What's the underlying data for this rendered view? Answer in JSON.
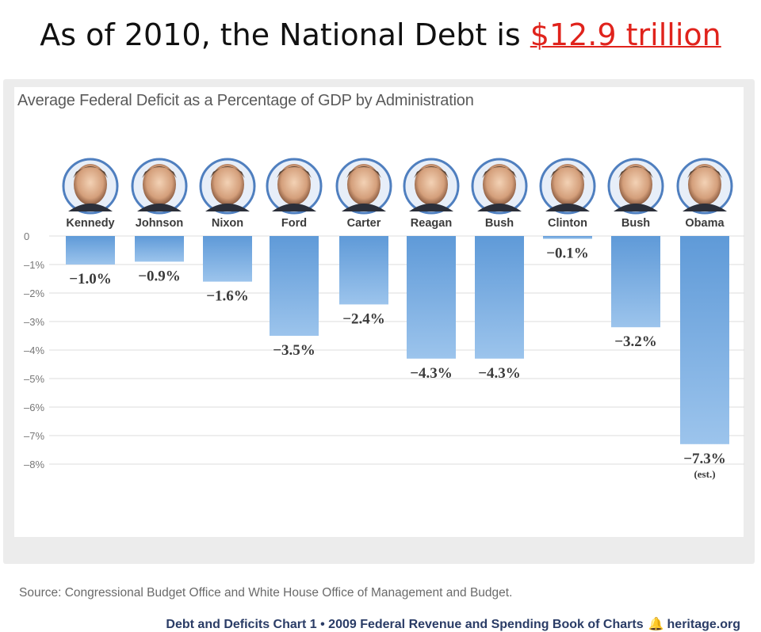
{
  "slide": {
    "title_prefix": "As of 2010, the National Debt is ",
    "title_highlight": "$12.9 trillion"
  },
  "colors": {
    "highlight": "#e0231c",
    "bar": "#5f9ad8",
    "bar_light": "#9cc4ec",
    "gridline": "#dddddd",
    "footer_text": "#2a3c66"
  },
  "chart_data": {
    "type": "bar",
    "title": "Average Federal Deficit as a Percentage of GDP by Administration",
    "categories": [
      "Kennedy",
      "Johnson",
      "Nixon",
      "Ford",
      "Carter",
      "Reagan",
      "Bush",
      "Clinton",
      "Bush",
      "Obama"
    ],
    "values": [
      -1.0,
      -0.9,
      -1.6,
      -3.5,
      -2.4,
      -4.3,
      -4.3,
      -0.1,
      -3.2,
      -7.3
    ],
    "data_labels": [
      "−1.0%",
      "−0.9%",
      "−1.6%",
      "−3.5%",
      "−2.4%",
      "−4.3%",
      "−4.3%",
      "−0.1%",
      "−3.2%",
      "−7.3%"
    ],
    "value_notes": [
      "",
      "",
      "",
      "",
      "",
      "",
      "",
      "",
      "",
      "(est.)"
    ],
    "yticks": [
      0,
      -1,
      -2,
      -3,
      -4,
      -5,
      -6,
      -7,
      -8
    ],
    "ytick_labels": [
      "0",
      "–1%",
      "–2%",
      "–3%",
      "–4%",
      "–5%",
      "–6%",
      "–7%",
      "–8%"
    ],
    "ylim": [
      -8,
      0
    ],
    "grid": true,
    "category_icons": [
      "portrait-icon",
      "portrait-icon",
      "portrait-icon",
      "portrait-icon",
      "portrait-icon",
      "portrait-icon",
      "portrait-icon",
      "portrait-icon",
      "portrait-icon",
      "portrait-icon"
    ]
  },
  "source": "Source: Congressional Budget Office and White House Office of Management and Budget.",
  "footer": {
    "chart_name": "Debt and Deficits Chart 1 • 2009 Federal Revenue and Spending Book of Charts",
    "site": "heritage.org",
    "logo_icon": "liberty-bell-icon"
  }
}
